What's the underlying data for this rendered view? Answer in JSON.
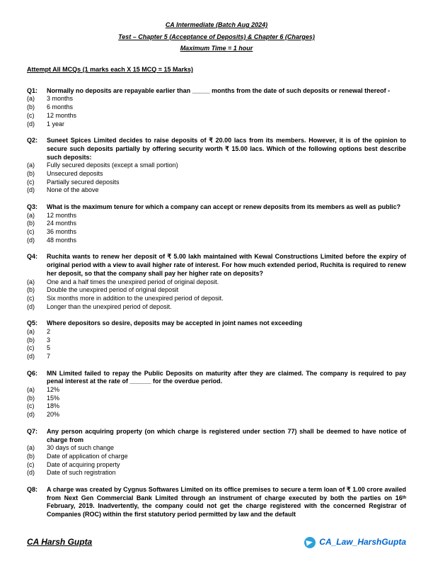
{
  "header": {
    "line1": "CA Intermediate (Batch Aug 2024)",
    "line2": "Test – Chapter 5 (Acceptance of Deposits) & Chapter 6 (Charges)",
    "line3": "Maximum Time = 1 hour"
  },
  "instruction": "Attempt All MCQs (1 marks each X 15 MCQ = 15 Marks)",
  "questions": [
    {
      "num": "Q1:",
      "text": "Normally no deposits are repayable earlier than _____ months from the date of such deposits or renewal thereof -",
      "options": [
        {
          "n": "(a)",
          "t": "3 months"
        },
        {
          "n": "(b)",
          "t": "6 months"
        },
        {
          "n": "(c)",
          "t": "12 months"
        },
        {
          "n": "(d)",
          "t": "1 year"
        }
      ]
    },
    {
      "num": "Q2:",
      "text": "Suneet Spices Limited decides to raise deposits of ₹ 20.00 lacs from its members. However, it is of the opinion to secure such deposits partially by offering security worth ₹ 15.00 lacs. Which of the following options best describe such deposits:",
      "options": [
        {
          "n": "(a)",
          "t": "Fully secured deposits (except a small portion)"
        },
        {
          "n": "(b)",
          "t": "Unsecured deposits"
        },
        {
          "n": "(c)",
          "t": "Partially secured deposits"
        },
        {
          "n": "(d)",
          "t": "None of the above"
        }
      ]
    },
    {
      "num": "Q3:",
      "text": "What is the maximum tenure for which a company can accept or renew deposits from its members as well as public?",
      "options": [
        {
          "n": "(a)",
          "t": "12 months"
        },
        {
          "n": "(b)",
          "t": "24 months"
        },
        {
          "n": "(c)",
          "t": "36 months"
        },
        {
          "n": "(d)",
          "t": "48 months"
        }
      ]
    },
    {
      "num": "Q4:",
      "text": "Ruchita wants to renew her deposit of ₹ 5.00 lakh maintained with Kewal Constructions Limited before the expiry of original period with a view to avail higher rate of interest. For how much extended period, Ruchita is required to renew her deposit, so that the company shall pay her higher rate on deposits?",
      "options": [
        {
          "n": "(a)",
          "t": "One and a half times the unexpired period of original deposit."
        },
        {
          "n": "(b)",
          "t": "Double the unexpired period of original deposit"
        },
        {
          "n": "(c)",
          "t": "Six months more in addition to the unexpired period of deposit."
        },
        {
          "n": "(d)",
          "t": "Longer than the unexpired period of deposit."
        }
      ]
    },
    {
      "num": "Q5:",
      "text": "Where depositors so desire, deposits may be accepted in joint names not exceeding",
      "options": [
        {
          "n": "(a)",
          "t": "2"
        },
        {
          "n": "(b)",
          "t": "3"
        },
        {
          "n": "(c)",
          "t": "5"
        },
        {
          "n": "(d)",
          "t": "7"
        }
      ]
    },
    {
      "num": "Q6:",
      "text": "MN Limited failed to repay the Public Deposits on maturity after they are claimed. The company is required to pay penal interest at the rate of ______ for the overdue period.",
      "options": [
        {
          "n": "(a)",
          "t": "12%"
        },
        {
          "n": "(b)",
          "t": "15%"
        },
        {
          "n": "(c)",
          "t": "18%"
        },
        {
          "n": "(d)",
          "t": "20%"
        }
      ]
    },
    {
      "num": "Q7:",
      "text": "Any person acquiring property (on which charge is registered under section 77) shall be deemed to have notice of charge from",
      "options": [
        {
          "n": "(a)",
          "t": "30 days of such change"
        },
        {
          "n": "(b)",
          "t": "Date of application of charge"
        },
        {
          "n": "(c)",
          "t": "Date of acquiring property"
        },
        {
          "n": "(d)",
          "t": "Date of such registration"
        }
      ]
    },
    {
      "num": "Q8:",
      "text": "A charge was created by Cygnus Softwares Limited on its office premises to secure a term loan of ₹ 1.00 crore availed from Next Gen Commercial Bank Limited through an instrument of charge executed by both the parties on 16ᵗʰ February, 2019. Inadvertently, the company could not get the charge registered with the concerned Registrar of Companies (ROC) within the first statutory period permitted by law and the default",
      "options": []
    }
  ],
  "footer": {
    "left": "CA Harsh Gupta",
    "right": "CA_Law_HarshGupta"
  }
}
